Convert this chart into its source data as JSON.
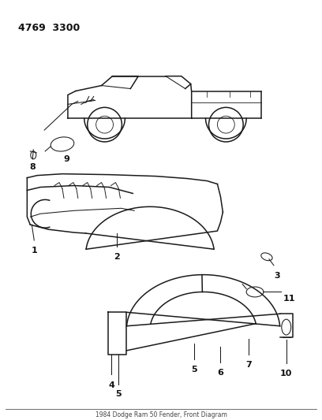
{
  "bg_color": "#ffffff",
  "line_color": "#1a1a1a",
  "label_color": "#111111",
  "part_number": "4769  3300",
  "title": "1984 Dodge Ram 50 Fender, Front Diagram",
  "label_fontsize": 8.0,
  "lw_main": 1.1,
  "lw_thin": 0.75
}
